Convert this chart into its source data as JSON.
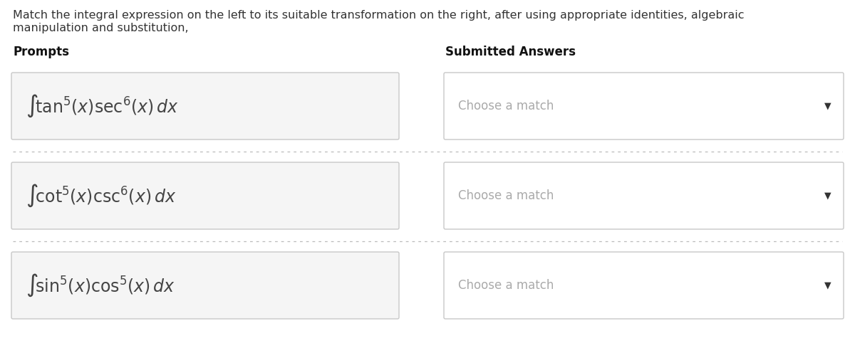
{
  "title_line1": "Match the integral expression on the left to its suitable transformation on the right, after using appropriate identities, algebraic",
  "title_line2": "manipulation and substitution,",
  "prompts_label": "Prompts",
  "answers_label": "Submitted Answers",
  "prompts": [
    "$\\int\\!\\tan^5\\!(x)\\sec^6\\!(x)\\,dx$",
    "$\\int\\!\\cot^5\\!(x)\\csc^6\\!(x)\\,dx$",
    "$\\int\\!\\sin^5\\!(x)\\cos^5\\!(x)\\,dx$"
  ],
  "answer_placeholder": "Choose a match",
  "bg_color": "#ffffff",
  "box_bg": "#f5f5f5",
  "box_border": "#c8c8c8",
  "answer_box_bg": "#ffffff",
  "answer_box_border": "#c8c8c8",
  "text_color": "#444444",
  "title_color": "#333333",
  "label_color": "#111111",
  "placeholder_color": "#aaaaaa",
  "separator_color": "#bbbbbb",
  "arrow_color": "#333333",
  "prompt_font_size": 17,
  "label_font_size": 12,
  "title_font_size": 11.5,
  "placeholder_font_size": 12
}
